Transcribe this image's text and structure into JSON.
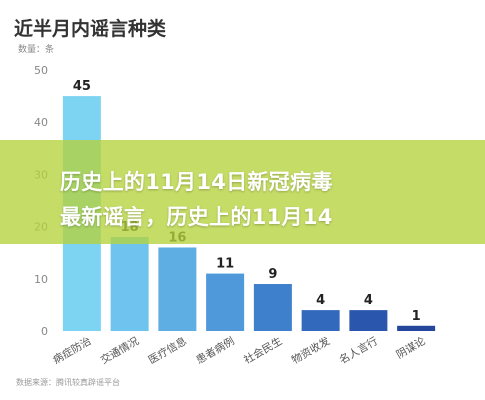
{
  "chart_data": {
    "type": "bar",
    "title": "近半月内谣言种类",
    "ylabel": "数量：条",
    "xlabel": "",
    "categories": [
      "病症防治",
      "交通情况",
      "医疗信息",
      "患者病例",
      "社会民生",
      "物资收发",
      "名人言行",
      "阴谋论"
    ],
    "values": [
      45,
      18,
      16,
      11,
      9,
      4,
      4,
      1
    ],
    "data_labels": [
      "45",
      "18",
      "16",
      "11",
      "9",
      "4",
      "4",
      "1"
    ],
    "bar_colors": [
      "#7DD3F2",
      "#6EC4EE",
      "#5FAEE3",
      "#4F98D9",
      "#3F80CC",
      "#3369BD",
      "#2A57AD",
      "#24479C"
    ],
    "ylim": [
      0,
      50
    ],
    "yticks": [
      0,
      10,
      20,
      30,
      40,
      50
    ],
    "grid": false,
    "legend": "none"
  },
  "banner": {
    "line1": "历史上的11月14日新冠病毒",
    "line2": "最新谣言，历史上的11月14"
  },
  "source": "数据来源：腾讯较真辟谣平台"
}
